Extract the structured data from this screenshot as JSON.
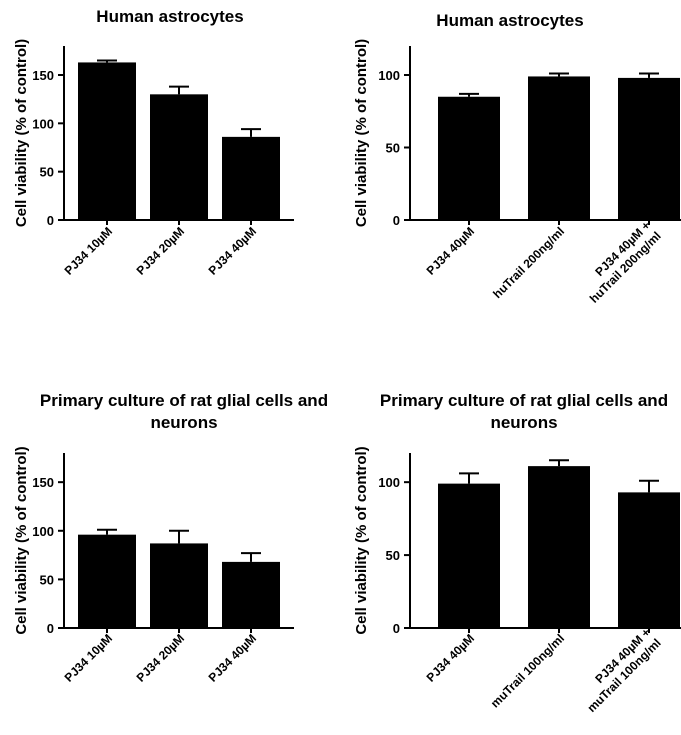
{
  "chart_data": [
    {
      "type": "bar",
      "title": "Human astrocytes",
      "ylabel": "Cell viability (% of control)",
      "xlabel": "",
      "categories": [
        "PJ34 10µM",
        "PJ34 20µM",
        "PJ34 40µM"
      ],
      "values": [
        163,
        130,
        86
      ],
      "errors": [
        2,
        8,
        8
      ],
      "ylim": [
        0,
        180
      ],
      "yticks": [
        "0",
        "50",
        "100",
        "150"
      ],
      "grid": false,
      "bar_color": "#000000"
    },
    {
      "type": "bar",
      "title": "Human astrocytes",
      "ylabel": "Cell viability (% of control)",
      "xlabel": "",
      "categories": [
        "PJ34 40µM",
        "huTrail 200ng/ml",
        "PJ34 40µM + huTrail 200ng/ml"
      ],
      "values": [
        85,
        99,
        98
      ],
      "errors": [
        2,
        2,
        3
      ],
      "ylim": [
        0,
        120
      ],
      "yticks": [
        "0",
        "50",
        "100"
      ],
      "grid": false,
      "bar_color": "#000000"
    },
    {
      "type": "bar",
      "title": "Primary culture of rat glial cells and neurons",
      "ylabel": "Cell viability (% of control)",
      "xlabel": "",
      "categories": [
        "PJ34 10µM",
        "PJ34 20µM",
        "PJ34 40µM"
      ],
      "values": [
        96,
        87,
        68
      ],
      "errors": [
        5,
        13,
        9
      ],
      "ylim": [
        0,
        180
      ],
      "yticks": [
        "0",
        "50",
        "100",
        "150"
      ],
      "grid": false,
      "bar_color": "#000000"
    },
    {
      "type": "bar",
      "title": "Primary culture of rat glial cells and neurons",
      "ylabel": "Cell viability (% of control)",
      "xlabel": "",
      "categories": [
        "PJ34 40µM",
        "muTrail 100ng/ml",
        "PJ34 40µM + muTrail 100ng/ml"
      ],
      "values": [
        99,
        111,
        93
      ],
      "errors": [
        7,
        4,
        8
      ],
      "ylim": [
        0,
        120
      ],
      "yticks": [
        "0",
        "50",
        "100"
      ],
      "grid": false,
      "bar_color": "#000000"
    }
  ]
}
